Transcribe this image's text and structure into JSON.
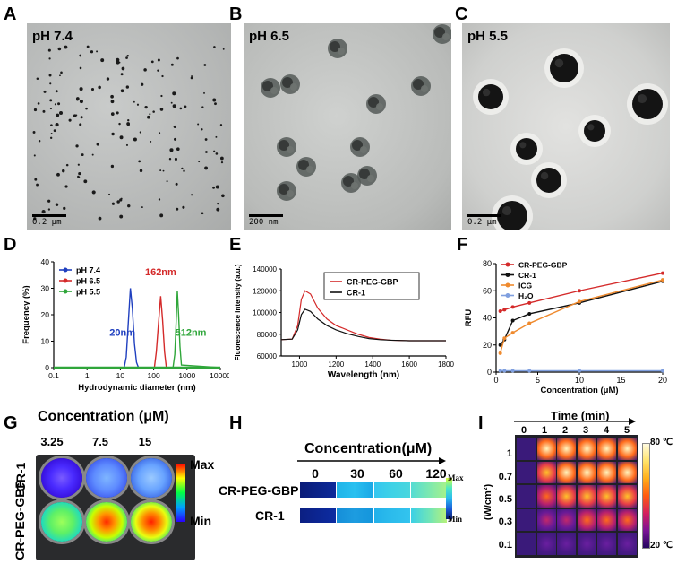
{
  "panels": {
    "A": {
      "letter": "A",
      "label": "pH 7.4",
      "scale": "0.2 μm"
    },
    "B": {
      "letter": "B",
      "label": "pH 6.5",
      "scale": "200 nm"
    },
    "C": {
      "letter": "C",
      "label": "pH 5.5",
      "scale": "0.2 μm"
    },
    "D": {
      "letter": "D"
    },
    "E": {
      "letter": "E"
    },
    "F": {
      "letter": "F"
    },
    "G": {
      "letter": "G",
      "title": "Concentration (μM)",
      "columns": [
        "3.25",
        "7.5",
        "15"
      ],
      "rows": [
        "CR-1",
        "CR-PEG-GBP"
      ],
      "scale_max": "Max",
      "scale_min": "Min"
    },
    "H": {
      "letter": "H",
      "title": "Concentration(μM)",
      "columns": [
        "0",
        "30",
        "60",
        "120"
      ],
      "rows": [
        "CR-PEG-GBP",
        "CR-1"
      ],
      "scale_max": "Max",
      "scale_min": "Min"
    },
    "I": {
      "letter": "I",
      "title": "Time (min)",
      "columns": [
        "0",
        "1",
        "2",
        "3",
        "4",
        "5"
      ],
      "rows": [
        "1",
        "0.7",
        "0.5",
        "0.3",
        "0.1"
      ],
      "ylabel": "(W/cm²)",
      "scale_max": "80 ℃",
      "scale_min": "20 ℃"
    }
  },
  "chart_data": [
    {
      "id": "D",
      "type": "line",
      "xlabel": "Hydrodynamic diameter (nm)",
      "ylabel": "Frequency (%)",
      "xscale": "log",
      "xlim": [
        0.1,
        10000
      ],
      "ylim": [
        0,
        40
      ],
      "xticks": [
        "0.1",
        "1",
        "10",
        "100",
        "1000",
        "10000"
      ],
      "yticks": [
        "0",
        "10",
        "20",
        "30",
        "40"
      ],
      "legend": "top-left",
      "series": [
        {
          "name": "pH 7.4",
          "color": "#1f3fbf",
          "peak_label": "20nm",
          "x": [
            0.1,
            13,
            15,
            17.5,
            20,
            23,
            26.5,
            30.5,
            35,
            10000
          ],
          "y": [
            0,
            0,
            4,
            18,
            30,
            22,
            9,
            2,
            0,
            0
          ]
        },
        {
          "name": "pH 6.5",
          "color": "#d42a2a",
          "peak_label": "162nm",
          "x": [
            0.1,
            105,
            120,
            140,
            162,
            185,
            212,
            240,
            10000
          ],
          "y": [
            0,
            0,
            6,
            17,
            27,
            18,
            6,
            0,
            0
          ]
        },
        {
          "name": "pH 5.5",
          "color": "#2fa63a",
          "peak_label": "512nm",
          "x": [
            0.1,
            380,
            430,
            475,
            512,
            560,
            615,
            680,
            10000
          ],
          "y": [
            0,
            0,
            5,
            18,
            29,
            20,
            8,
            1,
            0
          ]
        }
      ]
    },
    {
      "id": "E",
      "type": "line",
      "xlabel": "Wavelength (nm)",
      "ylabel": "Fluorescence intensity (a.u.)",
      "xlim": [
        900,
        1800
      ],
      "ylim": [
        60000,
        140000
      ],
      "xticks": [
        "1000",
        "1200",
        "1400",
        "1600",
        "1800"
      ],
      "yticks": [
        "60000",
        "80000",
        "100000",
        "120000",
        "140000"
      ],
      "legend": "top-right",
      "series": [
        {
          "name": "CR-PEG-GBP",
          "color": "#d42a2a",
          "x": [
            900,
            960,
            990,
            1010,
            1030,
            1060,
            1100,
            1150,
            1200,
            1260,
            1320,
            1380,
            1440,
            1500,
            1600,
            1700,
            1800
          ],
          "y": [
            75000,
            75500,
            88000,
            112000,
            120000,
            117000,
            104000,
            94000,
            88000,
            84000,
            80000,
            77000,
            75500,
            74500,
            74000,
            74000,
            74000
          ]
        },
        {
          "name": "CR-1",
          "color": "#111111",
          "x": [
            900,
            960,
            990,
            1010,
            1030,
            1060,
            1100,
            1150,
            1200,
            1260,
            1320,
            1380,
            1440,
            1500,
            1600,
            1700,
            1800
          ],
          "y": [
            75000,
            75500,
            84000,
            98000,
            103000,
            101000,
            94000,
            88000,
            84000,
            80500,
            78000,
            76000,
            75000,
            74500,
            74000,
            74000,
            74000
          ]
        }
      ]
    },
    {
      "id": "F",
      "type": "line",
      "xlabel": "Concentration (μM)",
      "ylabel": "RFU",
      "xlim": [
        0,
        20
      ],
      "ylim": [
        0,
        80
      ],
      "xticks": [
        "0",
        "5",
        "10",
        "15",
        "20"
      ],
      "yticks": [
        "0",
        "20",
        "40",
        "60",
        "80"
      ],
      "legend": "top-left",
      "series": [
        {
          "name": "CR-PEG-GBP",
          "color": "#d42a2a",
          "x": [
            0.5,
            1,
            2,
            4,
            10,
            20
          ],
          "y": [
            45,
            46,
            48,
            51,
            60,
            73
          ]
        },
        {
          "name": "CR-1",
          "color": "#111111",
          "x": [
            0.5,
            1,
            2,
            4,
            10,
            20
          ],
          "y": [
            20,
            24,
            38,
            43,
            51,
            67
          ]
        },
        {
          "name": "ICG",
          "color": "#ef8a2e",
          "x": [
            0.5,
            1,
            2,
            4,
            10,
            20
          ],
          "y": [
            14,
            25,
            29,
            36,
            52,
            68
          ]
        },
        {
          "name": "H₂O",
          "color": "#7f9fdf",
          "x": [
            0.5,
            1,
            2,
            4,
            10,
            20
          ],
          "y": [
            1,
            1,
            1,
            1,
            1,
            1
          ]
        }
      ]
    }
  ]
}
